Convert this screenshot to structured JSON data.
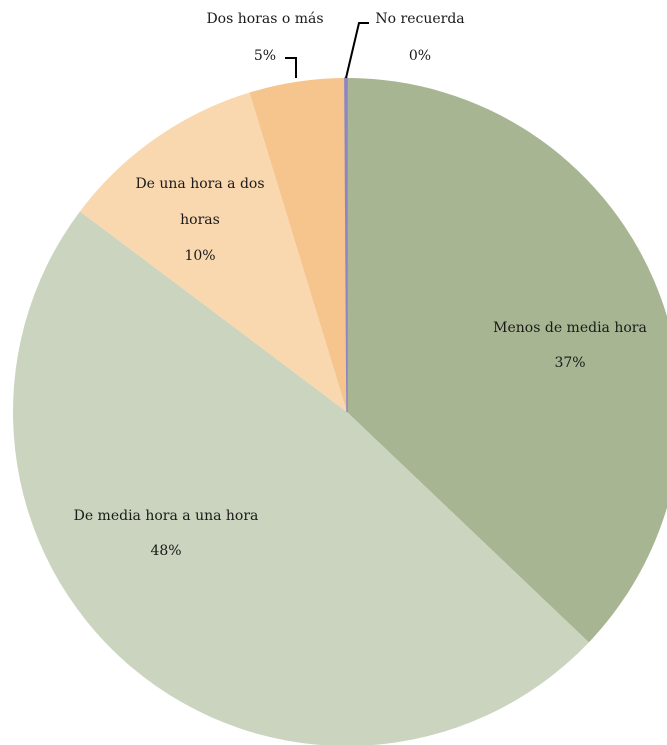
{
  "chart_data": {
    "type": "pie",
    "title": "",
    "slices": [
      {
        "label": "Menos de media hora",
        "label_lines": [
          "Menos de media hora"
        ],
        "value": 37,
        "value_label": "37%",
        "color": "#a7b592"
      },
      {
        "label": "De media hora a una hora",
        "label_lines": [
          "De media hora a una hora"
        ],
        "value": 48,
        "value_label": "48%",
        "color": "#cad4be"
      },
      {
        "label": "De una hora a dos horas",
        "label_lines": [
          "De una hora a dos",
          "horas"
        ],
        "value": 10,
        "value_label": "10%",
        "color": "#f9d8b0"
      },
      {
        "label": "Dos horas o más",
        "label_lines": [
          "Dos horas o más"
        ],
        "value": 4.6,
        "value_label": "5%",
        "color": "#f5c58d"
      },
      {
        "label": "No recuerda",
        "label_lines": [
          "No recuerda"
        ],
        "value": 0.1,
        "value_label": "0%",
        "color": "#8e86c4"
      }
    ],
    "start_angle_deg": 0,
    "direction": "clockwise",
    "legend": "none"
  }
}
